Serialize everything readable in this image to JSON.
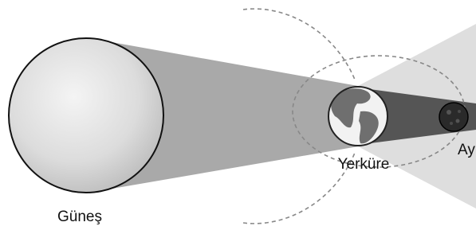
{
  "labels": {
    "sun": "Güneş",
    "earth": "Yerküre",
    "moon": "Ay"
  }
}
